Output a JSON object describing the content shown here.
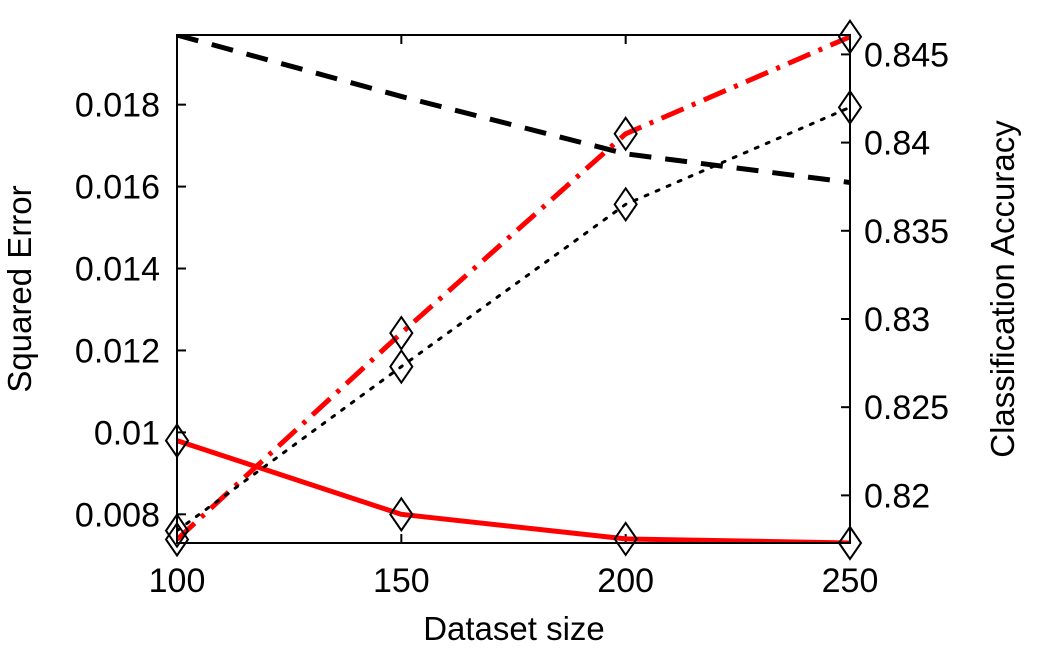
{
  "chart_data": {
    "type": "line",
    "xlabel": "Dataset size",
    "ylabel_left": "Squared Error",
    "ylabel_right": "Classification Accuracy",
    "xlim": [
      100,
      250
    ],
    "ylim_left": [
      0.0073,
      0.0197
    ],
    "ylim_right": [
      0.8173,
      0.8461
    ],
    "xticks": [
      "100",
      "150",
      "200",
      "250"
    ],
    "xtick_values": [
      100,
      150,
      200,
      250
    ],
    "yticks_left": [
      "0.008",
      "0.01",
      "0.012",
      "0.014",
      "0.016",
      "0.018"
    ],
    "ytick_values_left": [
      0.008,
      0.01,
      0.012,
      0.014,
      0.016,
      0.018
    ],
    "yticks_right": [
      "0.82",
      "0.825",
      "0.83",
      "0.835",
      "0.84",
      "0.845"
    ],
    "ytick_values_right": [
      0.82,
      0.825,
      0.83,
      0.835,
      0.84,
      0.845
    ],
    "grid": false,
    "legend": false,
    "series": [
      {
        "axis": "left",
        "color": "#ff0000",
        "style": "solid",
        "marker": "diamond",
        "x": [
          100,
          150,
          200,
          250
        ],
        "y": [
          0.0098,
          0.008,
          0.0074,
          0.0073
        ]
      },
      {
        "axis": "left",
        "color": "#000000",
        "style": "dashed",
        "marker": "none",
        "x": [
          100,
          150,
          200,
          250
        ],
        "y": [
          0.0197,
          0.0182,
          0.0168,
          0.0161
        ]
      },
      {
        "axis": "right",
        "color": "#ff0000",
        "style": "dashdot",
        "marker": "diamond",
        "x": [
          100,
          150,
          200,
          250
        ],
        "y": [
          0.8175,
          0.8292,
          0.8405,
          0.846
        ]
      },
      {
        "axis": "right",
        "color": "#000000",
        "style": "dotted",
        "marker": "diamond",
        "x": [
          100,
          150,
          200,
          250
        ],
        "y": [
          0.818,
          0.8273,
          0.8365,
          0.842
        ]
      }
    ]
  }
}
